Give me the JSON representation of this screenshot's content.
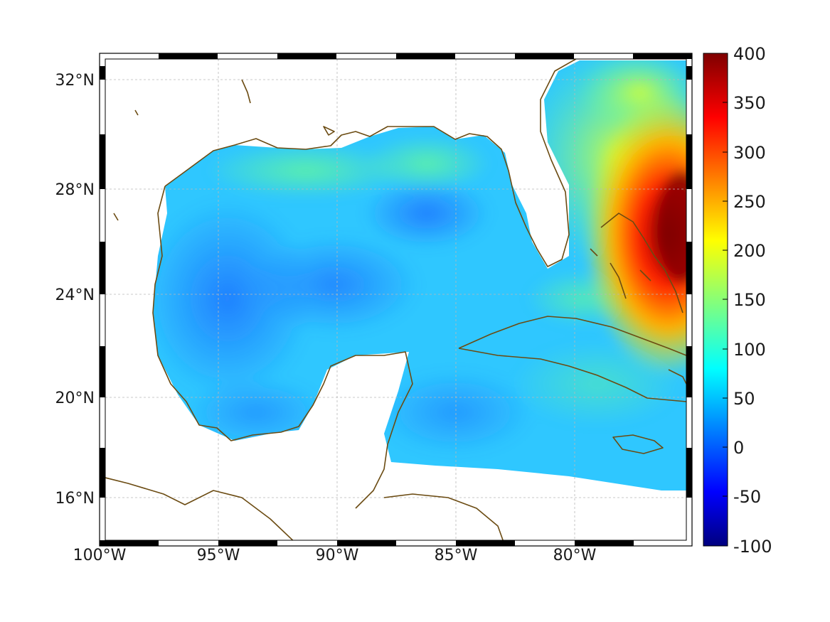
{
  "map": {
    "title": "",
    "lon_range": [
      -100,
      -74
    ],
    "lat_range": [
      15,
      33
    ],
    "lon_ticks": [
      {
        "value": -100,
        "label": "100°W"
      },
      {
        "value": -95,
        "label": "95°W"
      },
      {
        "value": -90,
        "label": "90°W"
      },
      {
        "value": -85,
        "label": "85°W"
      },
      {
        "value": -80,
        "label": "80°W"
      }
    ],
    "lat_ticks": [
      {
        "value": 16,
        "label": "16°N"
      },
      {
        "value": 20,
        "label": "20°N"
      },
      {
        "value": 24,
        "label": "24°N"
      },
      {
        "value": 28,
        "label": "28°N"
      },
      {
        "value": 32,
        "label": "32°N"
      }
    ],
    "grid": true,
    "coastline_color": "#6b4b12",
    "land_color": "#ffffff",
    "colormap": "jet"
  },
  "colorbar": {
    "min": -100,
    "max": 400,
    "placement": "right",
    "ticks": [
      "400",
      "350",
      "300",
      "250",
      "200",
      "150",
      "100",
      "50",
      "0",
      "-50",
      "-100"
    ]
  }
}
